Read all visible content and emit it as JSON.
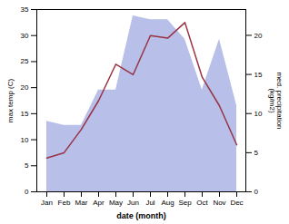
{
  "chart_data": {
    "type": "line",
    "xlabel": "date (month)",
    "ylabel": "max temp (C)",
    "y2label": "med. precipitation\n(kg/m2)",
    "categories": [
      "Jan",
      "Feb",
      "Mar",
      "Apr",
      "May",
      "Jun",
      "Jul",
      "Aug",
      "Sep",
      "Oct",
      "Nov",
      "Dec"
    ],
    "series": [
      {
        "type": "area",
        "axis": "y2",
        "color": "#b8bfe8",
        "values": [
          9.0,
          8.5,
          8.5,
          13.0,
          13.0,
          22.5,
          22.0,
          22.0,
          19.5,
          13.0,
          19.5,
          11.0
        ]
      },
      {
        "type": "line",
        "color": "#993344",
        "values": [
          6.5,
          7.5,
          12.0,
          17.5,
          24.5,
          22.5,
          30.0,
          29.5,
          32.5,
          22.0,
          16.5,
          9.0
        ]
      }
    ],
    "ylim": [
      0,
      35
    ],
    "yticks": [
      0,
      5,
      10,
      15,
      20,
      25,
      30,
      35
    ],
    "y2lim": [
      0,
      23.3
    ],
    "y2ticks": [
      0,
      5,
      10,
      15,
      20
    ],
    "grid": false
  }
}
